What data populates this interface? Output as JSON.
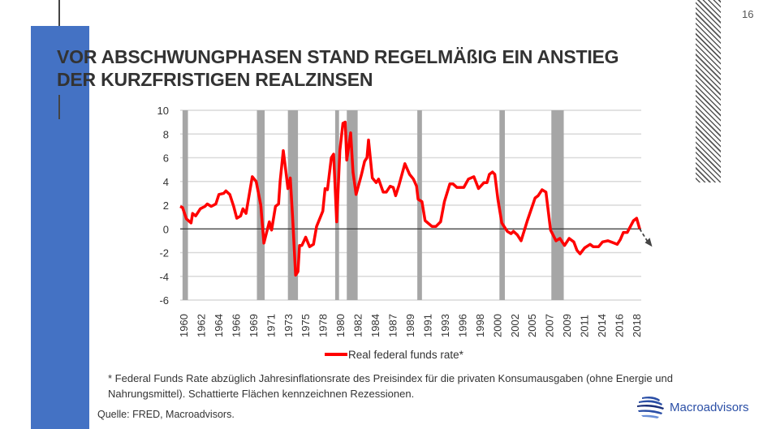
{
  "page_number": "16",
  "title_lines": [
    "VOR ABSCHWUNGPHASEN STAND REGELMÄßIG EIN ANSTIEG",
    "DER KURZFRISTIGEN REALZINSEN"
  ],
  "footnote": "* Federal Funds Rate abzüglich Jahresinflationsrate des Preisindex für die privaten Konsumausgaben (ohne Energie und Nahrungsmittel). Schattierte Flächen kennzeichnen Rezessionen.",
  "source": "Quelle: FRED, Macroadvisors.",
  "logo_text": "Macroadvisors",
  "colors": {
    "accent_blue": "#4472c4",
    "series": "#ff0000",
    "recession": "#a6a6a6",
    "logo": "#2b4fa6"
  },
  "chart_data": {
    "type": "line",
    "title": "",
    "xlabel": "",
    "ylabel": "",
    "xlim": [
      1960,
      2019.5
    ],
    "ylim": [
      -6,
      10
    ],
    "yticks": [
      10,
      8,
      6,
      4,
      2,
      0,
      -2,
      -4,
      -6
    ],
    "xtick_labels": [
      "1960",
      "1962",
      "1964",
      "1966",
      "1969",
      "1971",
      "1973",
      "1975",
      "1978",
      "1980",
      "1982",
      "1984",
      "1987",
      "1989",
      "1991",
      "1993",
      "1996",
      "1998",
      "2000",
      "2002",
      "2005",
      "2007",
      "2009",
      "2011",
      "2014",
      "2016",
      "2018"
    ],
    "grid": true,
    "legend": "bottom",
    "recessions": [
      [
        1960.3,
        1961.0
      ],
      [
        1969.9,
        1970.9
      ],
      [
        1973.9,
        1975.2
      ],
      [
        1980.0,
        1980.5
      ],
      [
        1981.5,
        1982.9
      ],
      [
        1990.6,
        1991.2
      ],
      [
        2001.2,
        2001.9
      ],
      [
        2007.9,
        2009.5
      ]
    ],
    "series": [
      {
        "name": "Real federal funds rate*",
        "x": [
          1960.0,
          1960.3,
          1960.8,
          1961.4,
          1961.6,
          1962.0,
          1962.6,
          1963.2,
          1963.5,
          1964.0,
          1964.6,
          1965.0,
          1965.6,
          1965.9,
          1966.4,
          1966.9,
          1967.3,
          1967.8,
          1968.1,
          1968.5,
          1969.3,
          1969.8,
          1970.4,
          1970.8,
          1971.5,
          1971.8,
          1972.3,
          1972.7,
          1972.9,
          1973.3,
          1973.7,
          1973.9,
          1974.2,
          1974.5,
          1974.9,
          1975.2,
          1975.4,
          1975.7,
          1976.2,
          1976.7,
          1977.2,
          1977.6,
          1978.4,
          1978.7,
          1979.0,
          1979.5,
          1979.8,
          1980.2,
          1980.6,
          1981.0,
          1981.3,
          1981.5,
          1982.0,
          1982.3,
          1982.7,
          1983.4,
          1983.8,
          1984.1,
          1984.3,
          1984.8,
          1985.3,
          1985.6,
          1986.2,
          1986.6,
          1987.1,
          1987.5,
          1987.8,
          1988.2,
          1989.0,
          1989.6,
          1990.1,
          1990.5,
          1990.7,
          1991.2,
          1991.6,
          1992.5,
          1993.0,
          1993.6,
          1994.1,
          1994.8,
          1995.2,
          1995.7,
          1996.6,
          1997.2,
          1997.9,
          1998.5,
          1999.2,
          1999.6,
          1999.9,
          2000.3,
          2000.6,
          2001.0,
          2001.5,
          2002.2,
          2002.7,
          2003.0,
          2003.5,
          2004.0,
          2004.8,
          2005.8,
          2006.2,
          2006.7,
          2007.2,
          2007.8,
          2008.5,
          2009.0,
          2009.6,
          2010.2,
          2010.8,
          2011.2,
          2011.6,
          2012.2,
          2012.9,
          2013.3,
          2014.0,
          2014.5,
          2015.2,
          2016.0,
          2016.4,
          2016.8,
          2017.2,
          2017.7,
          2018.1,
          2018.5,
          2018.9,
          2019.3
        ],
        "values": [
          1.9,
          1.8,
          0.85,
          0.5,
          1.3,
          1.1,
          1.7,
          1.9,
          2.1,
          1.9,
          2.1,
          2.9,
          3.0,
          3.2,
          2.9,
          1.9,
          0.9,
          1.1,
          1.7,
          1.3,
          4.4,
          4.0,
          2.0,
          -1.2,
          0.6,
          -0.1,
          1.9,
          2.1,
          4.0,
          6.6,
          4.5,
          3.4,
          4.3,
          1.1,
          -3.9,
          -3.6,
          -1.4,
          -1.4,
          -0.7,
          -1.5,
          -1.3,
          0.2,
          1.5,
          3.4,
          3.3,
          6.0,
          6.3,
          0.6,
          6.6,
          8.9,
          9.0,
          5.8,
          8.1,
          4.8,
          2.9,
          4.6,
          5.7,
          6.0,
          7.5,
          4.3,
          3.9,
          4.2,
          3.1,
          3.1,
          3.6,
          3.5,
          2.8,
          3.6,
          5.5,
          4.6,
          4.2,
          3.6,
          2.5,
          2.3,
          0.7,
          0.2,
          0.2,
          0.6,
          2.3,
          3.8,
          3.8,
          3.5,
          3.5,
          4.2,
          4.4,
          3.4,
          3.9,
          3.9,
          4.6,
          4.8,
          4.6,
          2.5,
          0.5,
          -0.2,
          -0.4,
          -0.2,
          -0.5,
          -1.0,
          0.7,
          2.6,
          2.8,
          3.3,
          3.1,
          -0.1,
          -1.0,
          -0.8,
          -1.4,
          -0.8,
          -1.1,
          -1.8,
          -2.1,
          -1.6,
          -1.3,
          -1.5,
          -1.5,
          -1.1,
          -1.0,
          -1.2,
          -1.3,
          -0.9,
          -0.3,
          -0.3,
          0.2,
          0.7,
          0.9,
          0.0
        ]
      }
    ],
    "annotations": [
      {
        "type": "dashed-arrow",
        "from": [
          2019.3,
          0.0
        ],
        "to": [
          2020.6,
          -1.3
        ]
      }
    ]
  }
}
